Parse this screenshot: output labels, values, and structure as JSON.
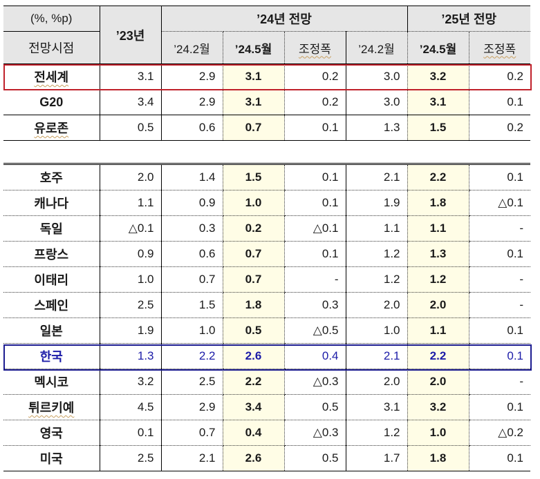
{
  "header": {
    "unit_label": "(%, %p)",
    "forecast_time_label": "전망시점",
    "col_2023": "’23년",
    "group_2024": "’24년 전망",
    "group_2025": "’25년 전망",
    "sub_feb": "’24.2월",
    "sub_may": "’24.5월",
    "sub_adj": "조정폭"
  },
  "highlight_colors": {
    "world_box": "#c0202a",
    "korea_box": "#1c1c90",
    "may_column_bg": "#fffde6",
    "header_bg": "#e6e6e6"
  },
  "rows_top": [
    {
      "name": "전세계",
      "y23": "3.1",
      "f24_feb": "2.9",
      "f24_may": "3.1",
      "f24_adj": "0.2",
      "f25_feb": "3.0",
      "f25_may": "3.2",
      "f25_adj": "0.2"
    },
    {
      "name": "G20",
      "y23": "3.4",
      "f24_feb": "2.9",
      "f24_may": "3.1",
      "f24_adj": "0.2",
      "f25_feb": "3.0",
      "f25_may": "3.1",
      "f25_adj": "0.1"
    },
    {
      "name": "유로존",
      "y23": "0.5",
      "f24_feb": "0.6",
      "f24_may": "0.7",
      "f24_adj": "0.1",
      "f25_feb": "1.3",
      "f25_may": "1.5",
      "f25_adj": "0.2"
    }
  ],
  "rows_countries": [
    {
      "name": "호주",
      "y23": "2.0",
      "f24_feb": "1.4",
      "f24_may": "1.5",
      "f24_adj": "0.1",
      "f25_feb": "2.1",
      "f25_may": "2.2",
      "f25_adj": "0.1"
    },
    {
      "name": "캐나다",
      "y23": "1.1",
      "f24_feb": "0.9",
      "f24_may": "1.0",
      "f24_adj": "0.1",
      "f25_feb": "1.9",
      "f25_may": "1.8",
      "f25_adj": "△0.1"
    },
    {
      "name": "독일",
      "y23": "△0.1",
      "f24_feb": "0.3",
      "f24_may": "0.2",
      "f24_adj": "△0.1",
      "f25_feb": "1.1",
      "f25_may": "1.1",
      "f25_adj": "-"
    },
    {
      "name": "프랑스",
      "y23": "0.9",
      "f24_feb": "0.6",
      "f24_may": "0.7",
      "f24_adj": "0.1",
      "f25_feb": "1.2",
      "f25_may": "1.3",
      "f25_adj": "0.1"
    },
    {
      "name": "이태리",
      "y23": "1.0",
      "f24_feb": "0.7",
      "f24_may": "0.7",
      "f24_adj": "-",
      "f25_feb": "1.2",
      "f25_may": "1.2",
      "f25_adj": "-"
    },
    {
      "name": "스페인",
      "y23": "2.5",
      "f24_feb": "1.5",
      "f24_may": "1.8",
      "f24_adj": "0.3",
      "f25_feb": "2.0",
      "f25_may": "2.0",
      "f25_adj": "-"
    },
    {
      "name": "일본",
      "y23": "1.9",
      "f24_feb": "1.0",
      "f24_may": "0.5",
      "f24_adj": "△0.5",
      "f25_feb": "1.0",
      "f25_may": "1.1",
      "f25_adj": "0.1"
    },
    {
      "name": "한국",
      "y23": "1.3",
      "f24_feb": "2.2",
      "f24_may": "2.6",
      "f24_adj": "0.4",
      "f25_feb": "2.1",
      "f25_may": "2.2",
      "f25_adj": "0.1"
    },
    {
      "name": "멕시코",
      "y23": "3.2",
      "f24_feb": "2.5",
      "f24_may": "2.2",
      "f24_adj": "△0.3",
      "f25_feb": "2.0",
      "f25_may": "2.0",
      "f25_adj": "-"
    },
    {
      "name": "튀르키예",
      "y23": "4.5",
      "f24_feb": "2.9",
      "f24_may": "3.4",
      "f24_adj": "0.5",
      "f25_feb": "3.1",
      "f25_may": "3.2",
      "f25_adj": "0.1"
    },
    {
      "name": "영국",
      "y23": "0.1",
      "f24_feb": "0.7",
      "f24_may": "0.4",
      "f24_adj": "△0.3",
      "f25_feb": "1.2",
      "f25_may": "1.0",
      "f25_adj": "△0.2"
    },
    {
      "name": "미국",
      "y23": "2.5",
      "f24_feb": "2.1",
      "f24_may": "2.6",
      "f24_adj": "0.5",
      "f25_feb": "1.7",
      "f25_may": "1.8",
      "f25_adj": "0.1"
    }
  ]
}
